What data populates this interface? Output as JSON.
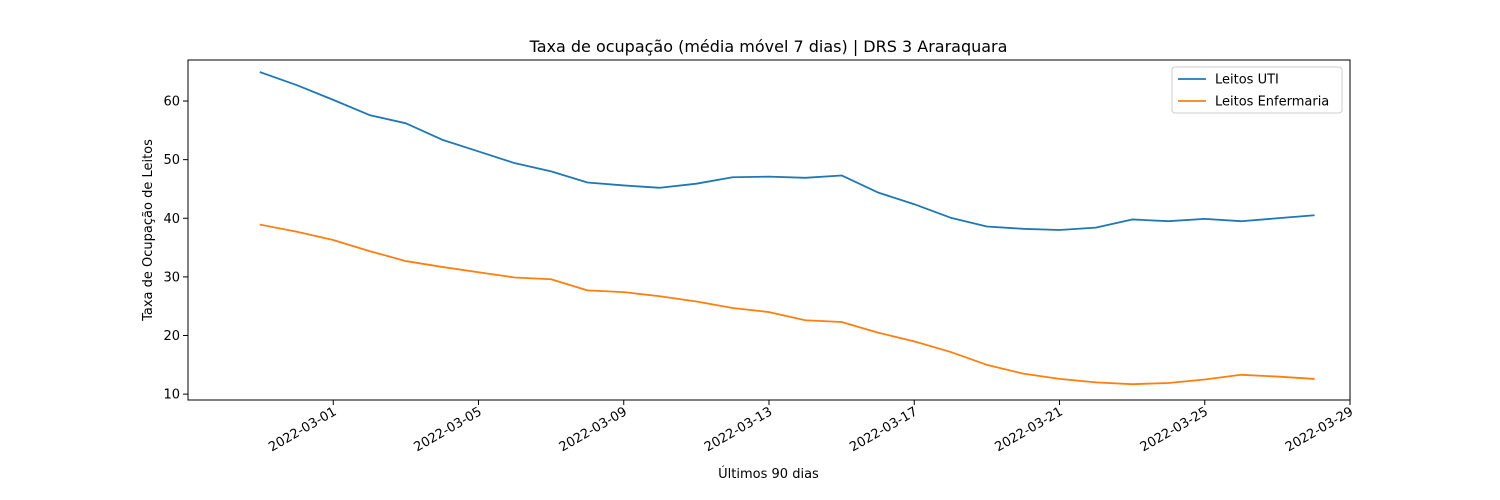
{
  "chart_data": {
    "type": "line",
    "title": "Taxa de ocupação (média móvel 7 dias) | DRS 3 Araraquara",
    "xlabel": "Últimos 90 dias",
    "ylabel": "Taxa de Ocupação de Leitos",
    "x_dates": [
      "2022-02-27",
      "2022-02-28",
      "2022-03-01",
      "2022-03-02",
      "2022-03-03",
      "2022-03-04",
      "2022-03-05",
      "2022-03-06",
      "2022-03-07",
      "2022-03-08",
      "2022-03-09",
      "2022-03-10",
      "2022-03-11",
      "2022-03-12",
      "2022-03-13",
      "2022-03-14",
      "2022-03-15",
      "2022-03-16",
      "2022-03-17",
      "2022-03-18",
      "2022-03-19",
      "2022-03-20",
      "2022-03-21",
      "2022-03-22",
      "2022-03-23",
      "2022-03-24",
      "2022-03-25",
      "2022-03-26",
      "2022-03-27",
      "2022-03-28"
    ],
    "xlim": [
      "2022-02-25",
      "2022-03-29"
    ],
    "x_ticks": [
      "2022-03-01",
      "2022-03-05",
      "2022-03-09",
      "2022-03-13",
      "2022-03-17",
      "2022-03-21",
      "2022-03-25",
      "2022-03-29"
    ],
    "ylim": [
      9,
      67
    ],
    "y_ticks": [
      10,
      20,
      30,
      40,
      50,
      60
    ],
    "series": [
      {
        "name": "Leitos UTI",
        "color": "#1f77b4",
        "values": [
          64.9,
          62.7,
          60.2,
          57.6,
          56.2,
          53.4,
          51.4,
          49.4,
          48.0,
          46.1,
          45.6,
          45.2,
          45.9,
          47.0,
          47.1,
          46.9,
          47.3,
          44.4,
          42.4,
          40.1,
          38.6,
          38.2,
          38.0,
          38.4,
          39.8,
          39.5,
          39.9,
          39.5,
          40.0,
          40.5
        ]
      },
      {
        "name": "Leitos Enfermaria",
        "color": "#ff7f0e",
        "values": [
          38.9,
          37.7,
          36.3,
          34.4,
          32.7,
          31.7,
          30.8,
          29.9,
          29.6,
          27.7,
          27.4,
          26.7,
          25.8,
          24.7,
          24.0,
          22.6,
          22.3,
          20.5,
          19.0,
          17.2,
          15.0,
          13.5,
          12.6,
          12.0,
          11.7,
          11.9,
          12.5,
          13.3,
          13.0,
          12.6
        ]
      }
    ],
    "legend_position": "top-right",
    "grid": false
  }
}
